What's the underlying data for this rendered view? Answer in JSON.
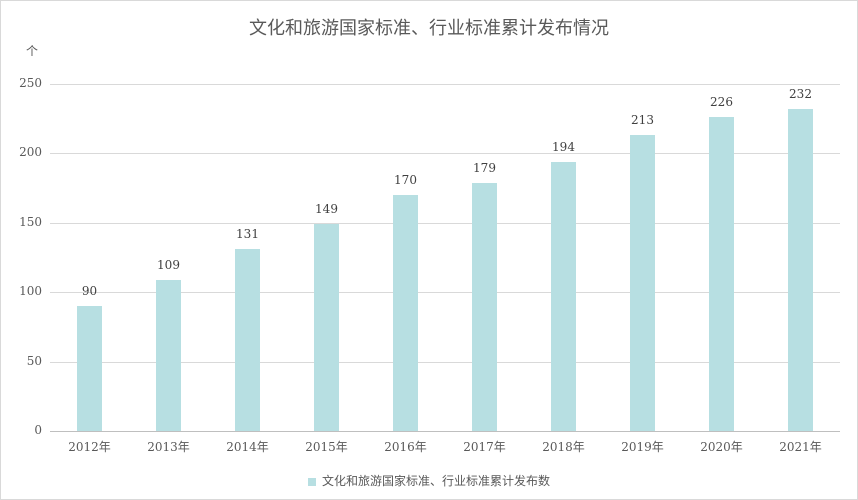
{
  "chart_data": {
    "type": "bar",
    "title": "文化和旅游国家标准、行业标准累计发布情况",
    "xlabel": "",
    "ylabel": "个",
    "ylim": [
      0,
      250
    ],
    "yticks": [
      0,
      50,
      100,
      150,
      200,
      250
    ],
    "grid": true,
    "legend_position": "bottom",
    "categories": [
      "2012年",
      "2013年",
      "2014年",
      "2015年",
      "2016年",
      "2017年",
      "2018年",
      "2019年",
      "2020年",
      "2021年"
    ],
    "series": [
      {
        "name": "文化和旅游国家标准、行业标准累计发布数",
        "color": "#b7dfe2",
        "values": [
          90,
          109,
          131,
          149,
          170,
          179,
          194,
          213,
          226,
          232
        ]
      }
    ]
  }
}
